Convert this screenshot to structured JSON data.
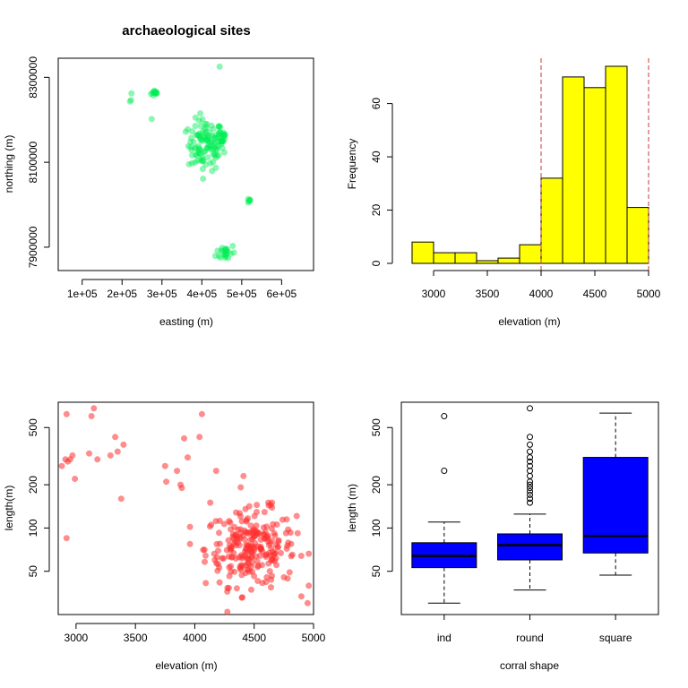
{
  "figure_title": "archaeological sites",
  "chart_data": [
    {
      "type": "scatter",
      "panel": "top-left",
      "title": "archaeological sites",
      "xlabel": "easting (m)",
      "ylabel": "northing (m)",
      "xlim": [
        40000,
        680000
      ],
      "ylim": [
        7845000,
        8345000
      ],
      "x_ticks": [
        100000,
        200000,
        300000,
        400000,
        500000,
        600000
      ],
      "x_tick_labels": [
        "1e+05",
        "2e+05",
        "3e+05",
        "4e+05",
        "5e+05",
        "6e+05"
      ],
      "y_ticks": [
        7900000,
        8100000,
        8300000
      ],
      "y_tick_labels": [
        "7900000",
        "8100000",
        "8300000"
      ],
      "point_color": "#00ee55",
      "clusters": [
        {
          "cx": 283000,
          "cy": 8263000,
          "sx": 5000,
          "sy": 4000,
          "n": 12
        },
        {
          "cx": 220000,
          "cy": 8252000,
          "sx": 3000,
          "sy": 8000,
          "n": 3
        },
        {
          "cx": 272000,
          "cy": 8200000,
          "sx": 2000,
          "sy": 2000,
          "n": 1
        },
        {
          "cx": 445000,
          "cy": 8325000,
          "sx": 1000,
          "sy": 1000,
          "n": 1
        },
        {
          "cx": 410000,
          "cy": 8140000,
          "sx": 22000,
          "sy": 30000,
          "n": 110
        },
        {
          "cx": 448000,
          "cy": 8160000,
          "sx": 8000,
          "sy": 10000,
          "n": 20
        },
        {
          "cx": 520000,
          "cy": 8010000,
          "sx": 4000,
          "sy": 4000,
          "n": 6
        },
        {
          "cx": 460000,
          "cy": 7888000,
          "sx": 12000,
          "sy": 10000,
          "n": 22
        }
      ]
    },
    {
      "type": "bar",
      "subtype": "histogram",
      "panel": "top-right",
      "title": "",
      "xlabel": "elevation (m)",
      "ylabel": "Frequency",
      "bin_edges": [
        2800,
        3000,
        3200,
        3400,
        3600,
        3800,
        4000,
        4200,
        4400,
        4600,
        4800,
        5000
      ],
      "values": [
        8,
        4,
        4,
        1,
        2,
        7,
        32,
        70,
        66,
        74,
        21
      ],
      "bar_color": "#ffff00",
      "xlim": [
        2800,
        5000
      ],
      "ylim": [
        0,
        75
      ],
      "x_ticks": [
        3000,
        3500,
        4000,
        4500,
        5000
      ],
      "x_tick_labels": [
        "3000",
        "3500",
        "4000",
        "4500",
        "5000"
      ],
      "y_ticks": [
        0,
        20,
        40,
        60
      ],
      "y_tick_labels": [
        "0",
        "20",
        "40",
        "60"
      ],
      "vlines": [
        4000,
        5000
      ],
      "vline_color": "#cd5c5c"
    },
    {
      "type": "scatter",
      "panel": "bottom-left",
      "title": "",
      "xlabel": "elevation (m)",
      "ylabel": "length(m)",
      "y_scale": "log",
      "xlim": [
        2850,
        5000
      ],
      "ylim": [
        25,
        750
      ],
      "x_ticks": [
        3000,
        3500,
        4000,
        4500,
        5000
      ],
      "x_tick_labels": [
        "3000",
        "3500",
        "4000",
        "4500",
        "5000"
      ],
      "y_ticks": [
        50,
        100,
        200,
        500
      ],
      "y_tick_labels": [
        "50",
        "100",
        "200",
        "500"
      ],
      "point_color": "#ff3030",
      "points": [
        [
          2920,
          620
        ],
        [
          2910,
          300
        ],
        [
          2930,
          290
        ],
        [
          2950,
          300
        ],
        [
          2970,
          320
        ],
        [
          2880,
          270
        ],
        [
          2990,
          220
        ],
        [
          3130,
          600
        ],
        [
          3150,
          680
        ],
        [
          3110,
          330
        ],
        [
          3180,
          300
        ],
        [
          3290,
          320
        ],
        [
          3330,
          430
        ],
        [
          3350,
          340
        ],
        [
          3400,
          380
        ],
        [
          3380,
          160
        ],
        [
          2920,
          85
        ],
        [
          3750,
          270
        ],
        [
          3760,
          210
        ],
        [
          3850,
          250
        ],
        [
          3880,
          200
        ],
        [
          3890,
          190
        ],
        [
          3910,
          420
        ],
        [
          3940,
          310
        ],
        [
          4040,
          430
        ],
        [
          4060,
          620
        ],
        [
          4130,
          150
        ],
        [
          4180,
          250
        ],
        [
          4410,
          230
        ],
        [
          4620,
          150
        ],
        [
          4650,
          150
        ],
        [
          4950,
          30
        ],
        [
          4400,
          33
        ]
      ],
      "dense_cluster": {
        "cx": 4470,
        "cy": 72,
        "sx": 190,
        "slog": 0.13,
        "n": 240,
        "xmin": 3960,
        "xmax": 4960
      }
    },
    {
      "type": "box",
      "panel": "bottom-right",
      "title": "",
      "xlabel": "corral shape",
      "ylabel": "length (m)",
      "y_scale": "log",
      "ylim": [
        25,
        750
      ],
      "categories": [
        "ind",
        "round",
        "square"
      ],
      "boxes": [
        {
          "label": "ind",
          "whisker_low": 30,
          "q1": 53,
          "median": 64,
          "q3": 79,
          "whisker_high": 110,
          "outliers": [
            250,
            600
          ]
        },
        {
          "label": "round",
          "whisker_low": 37,
          "q1": 60,
          "median": 76,
          "q3": 91,
          "whisker_high": 125,
          "outliers": [
            150,
            160,
            170,
            180,
            190,
            200,
            210,
            230,
            250,
            270,
            290,
            310,
            340,
            380,
            430,
            680
          ]
        },
        {
          "label": "square",
          "whisker_low": 47,
          "q1": 67,
          "median": 88,
          "q3": 310,
          "whisker_high": 630,
          "outliers": []
        }
      ],
      "box_color": "#0000ff",
      "y_ticks": [
        50,
        100,
        200,
        500
      ],
      "y_tick_labels": [
        "50",
        "100",
        "200",
        "500"
      ]
    }
  ]
}
